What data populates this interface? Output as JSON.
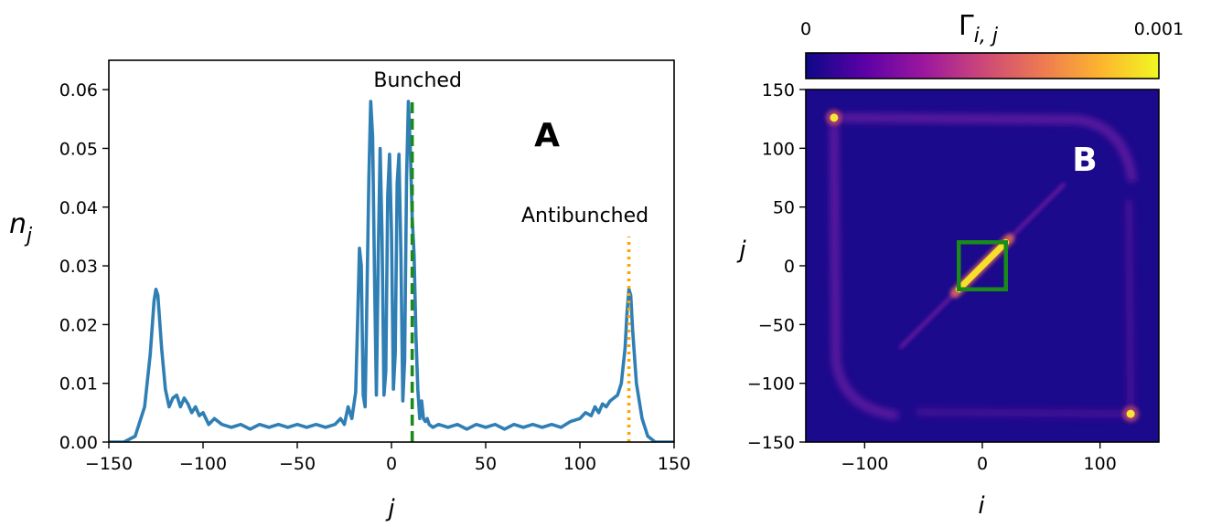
{
  "chart_data": [
    {
      "type": "line",
      "panel_label": "A",
      "xlabel": "j",
      "ylabel_base": "n",
      "ylabel_sub": "j",
      "xlim": [
        -150,
        150
      ],
      "ylim": [
        0,
        0.065
      ],
      "xticks": [
        -150,
        -100,
        -50,
        0,
        50,
        100,
        150
      ],
      "xtick_labels": [
        "−150",
        "−100",
        "−50",
        "0",
        "50",
        "100",
        "150"
      ],
      "yticks": [
        0,
        0.01,
        0.02,
        0.03,
        0.04,
        0.05,
        0.06
      ],
      "ytick_labels": [
        "0.00",
        "0.01",
        "0.02",
        "0.03",
        "0.04",
        "0.05",
        "0.06"
      ],
      "grid": false,
      "series": [
        {
          "color": "#2f7fb5",
          "x": [
            -150,
            -142,
            -136,
            -131,
            -128,
            -126,
            -125,
            -124,
            -122,
            -120,
            -118,
            -116,
            -114,
            -112,
            -110,
            -108,
            -106,
            -104,
            -102,
            -100,
            -97,
            -94,
            -90,
            -85,
            -80,
            -75,
            -70,
            -65,
            -60,
            -55,
            -50,
            -45,
            -40,
            -35,
            -30,
            -27,
            -25,
            -23,
            -21,
            -19,
            -18,
            -17,
            -16,
            -15,
            -14,
            -13,
            -12,
            -11,
            -10,
            -9,
            -8,
            -7,
            -6,
            -5,
            -4,
            -3,
            -2,
            -1,
            0,
            1,
            2,
            3,
            4,
            5,
            6,
            7,
            8,
            9,
            10,
            11,
            12,
            13,
            14,
            15,
            16,
            17,
            18,
            19,
            20,
            22,
            25,
            30,
            35,
            40,
            45,
            50,
            55,
            60,
            65,
            70,
            75,
            80,
            85,
            90,
            95,
            100,
            103,
            106,
            108,
            110,
            112,
            114,
            116,
            118,
            120,
            122,
            124,
            125,
            126,
            127,
            128,
            130,
            133,
            136,
            140,
            150
          ],
          "y": [
            0,
            0,
            0.001,
            0.006,
            0.015,
            0.024,
            0.026,
            0.025,
            0.016,
            0.009,
            0.006,
            0.0075,
            0.008,
            0.006,
            0.0075,
            0.0065,
            0.005,
            0.006,
            0.0045,
            0.005,
            0.003,
            0.004,
            0.003,
            0.0025,
            0.003,
            0.0022,
            0.003,
            0.0025,
            0.003,
            0.0025,
            0.003,
            0.0025,
            0.003,
            0.0025,
            0.003,
            0.004,
            0.003,
            0.006,
            0.004,
            0.0085,
            0.02,
            0.033,
            0.03,
            0.008,
            0.006,
            0.025,
            0.045,
            0.058,
            0.052,
            0.028,
            0.008,
            0.032,
            0.05,
            0.035,
            0.008,
            0.012,
            0.042,
            0.049,
            0.036,
            0.009,
            0.015,
            0.044,
            0.049,
            0.032,
            0.007,
            0.014,
            0.045,
            0.058,
            0.05,
            0.038,
            0.032,
            0.018,
            0.009,
            0.004,
            0.007,
            0.004,
            0.0035,
            0.004,
            0.003,
            0.0025,
            0.003,
            0.0025,
            0.003,
            0.0022,
            0.003,
            0.0025,
            0.003,
            0.0022,
            0.003,
            0.0025,
            0.003,
            0.0025,
            0.003,
            0.0025,
            0.0035,
            0.004,
            0.005,
            0.0045,
            0.006,
            0.005,
            0.0065,
            0.006,
            0.007,
            0.0075,
            0.008,
            0.01,
            0.016,
            0.022,
            0.026,
            0.025,
            0.019,
            0.01,
            0.004,
            0.001,
            0,
            0
          ]
        }
      ],
      "vlines": [
        {
          "x": 11,
          "ymax": 0.058,
          "color": "#1a8a1a",
          "style": "dashed",
          "label": "Bunched"
        },
        {
          "x": 126,
          "ymax": 0.035,
          "color": "#ffa500",
          "style": "dotted",
          "label": "Antibunched"
        }
      ]
    },
    {
      "type": "heatmap",
      "panel_label": "B",
      "xlabel": "i",
      "ylabel": "j",
      "xlim": [
        -150,
        150
      ],
      "ylim": [
        -150,
        150
      ],
      "xticks": [
        -100,
        0,
        100
      ],
      "xtick_labels": [
        "−100",
        "0",
        "100"
      ],
      "yticks": [
        -150,
        -100,
        -50,
        0,
        50,
        100,
        150
      ],
      "ytick_labels": [
        "−150",
        "−100",
        "−50",
        "0",
        "50",
        "100",
        "150"
      ],
      "colorbar": {
        "label_base": "Γ",
        "label_sub": "i, j",
        "min_label": "0",
        "max_label": "0.001",
        "vmin": 0,
        "vmax": 0.001,
        "colormap": "plasma",
        "stops": [
          "#0d0887",
          "#5c01a6",
          "#9c179e",
          "#cc4778",
          "#ed7953",
          "#fdb42f",
          "#f0f921"
        ]
      },
      "background_color": "#1c0a8c",
      "features": {
        "diagonal_peak_extent": [
          -20,
          20
        ],
        "diagonal_tail_extent": [
          -70,
          70
        ],
        "corner_peaks": [
          [
            -126,
            126
          ],
          [
            126,
            -126
          ]
        ],
        "highlight_box": {
          "x": [
            -20,
            20
          ],
          "y": [
            -20,
            20
          ],
          "color": "#1a8a1a"
        }
      }
    }
  ]
}
